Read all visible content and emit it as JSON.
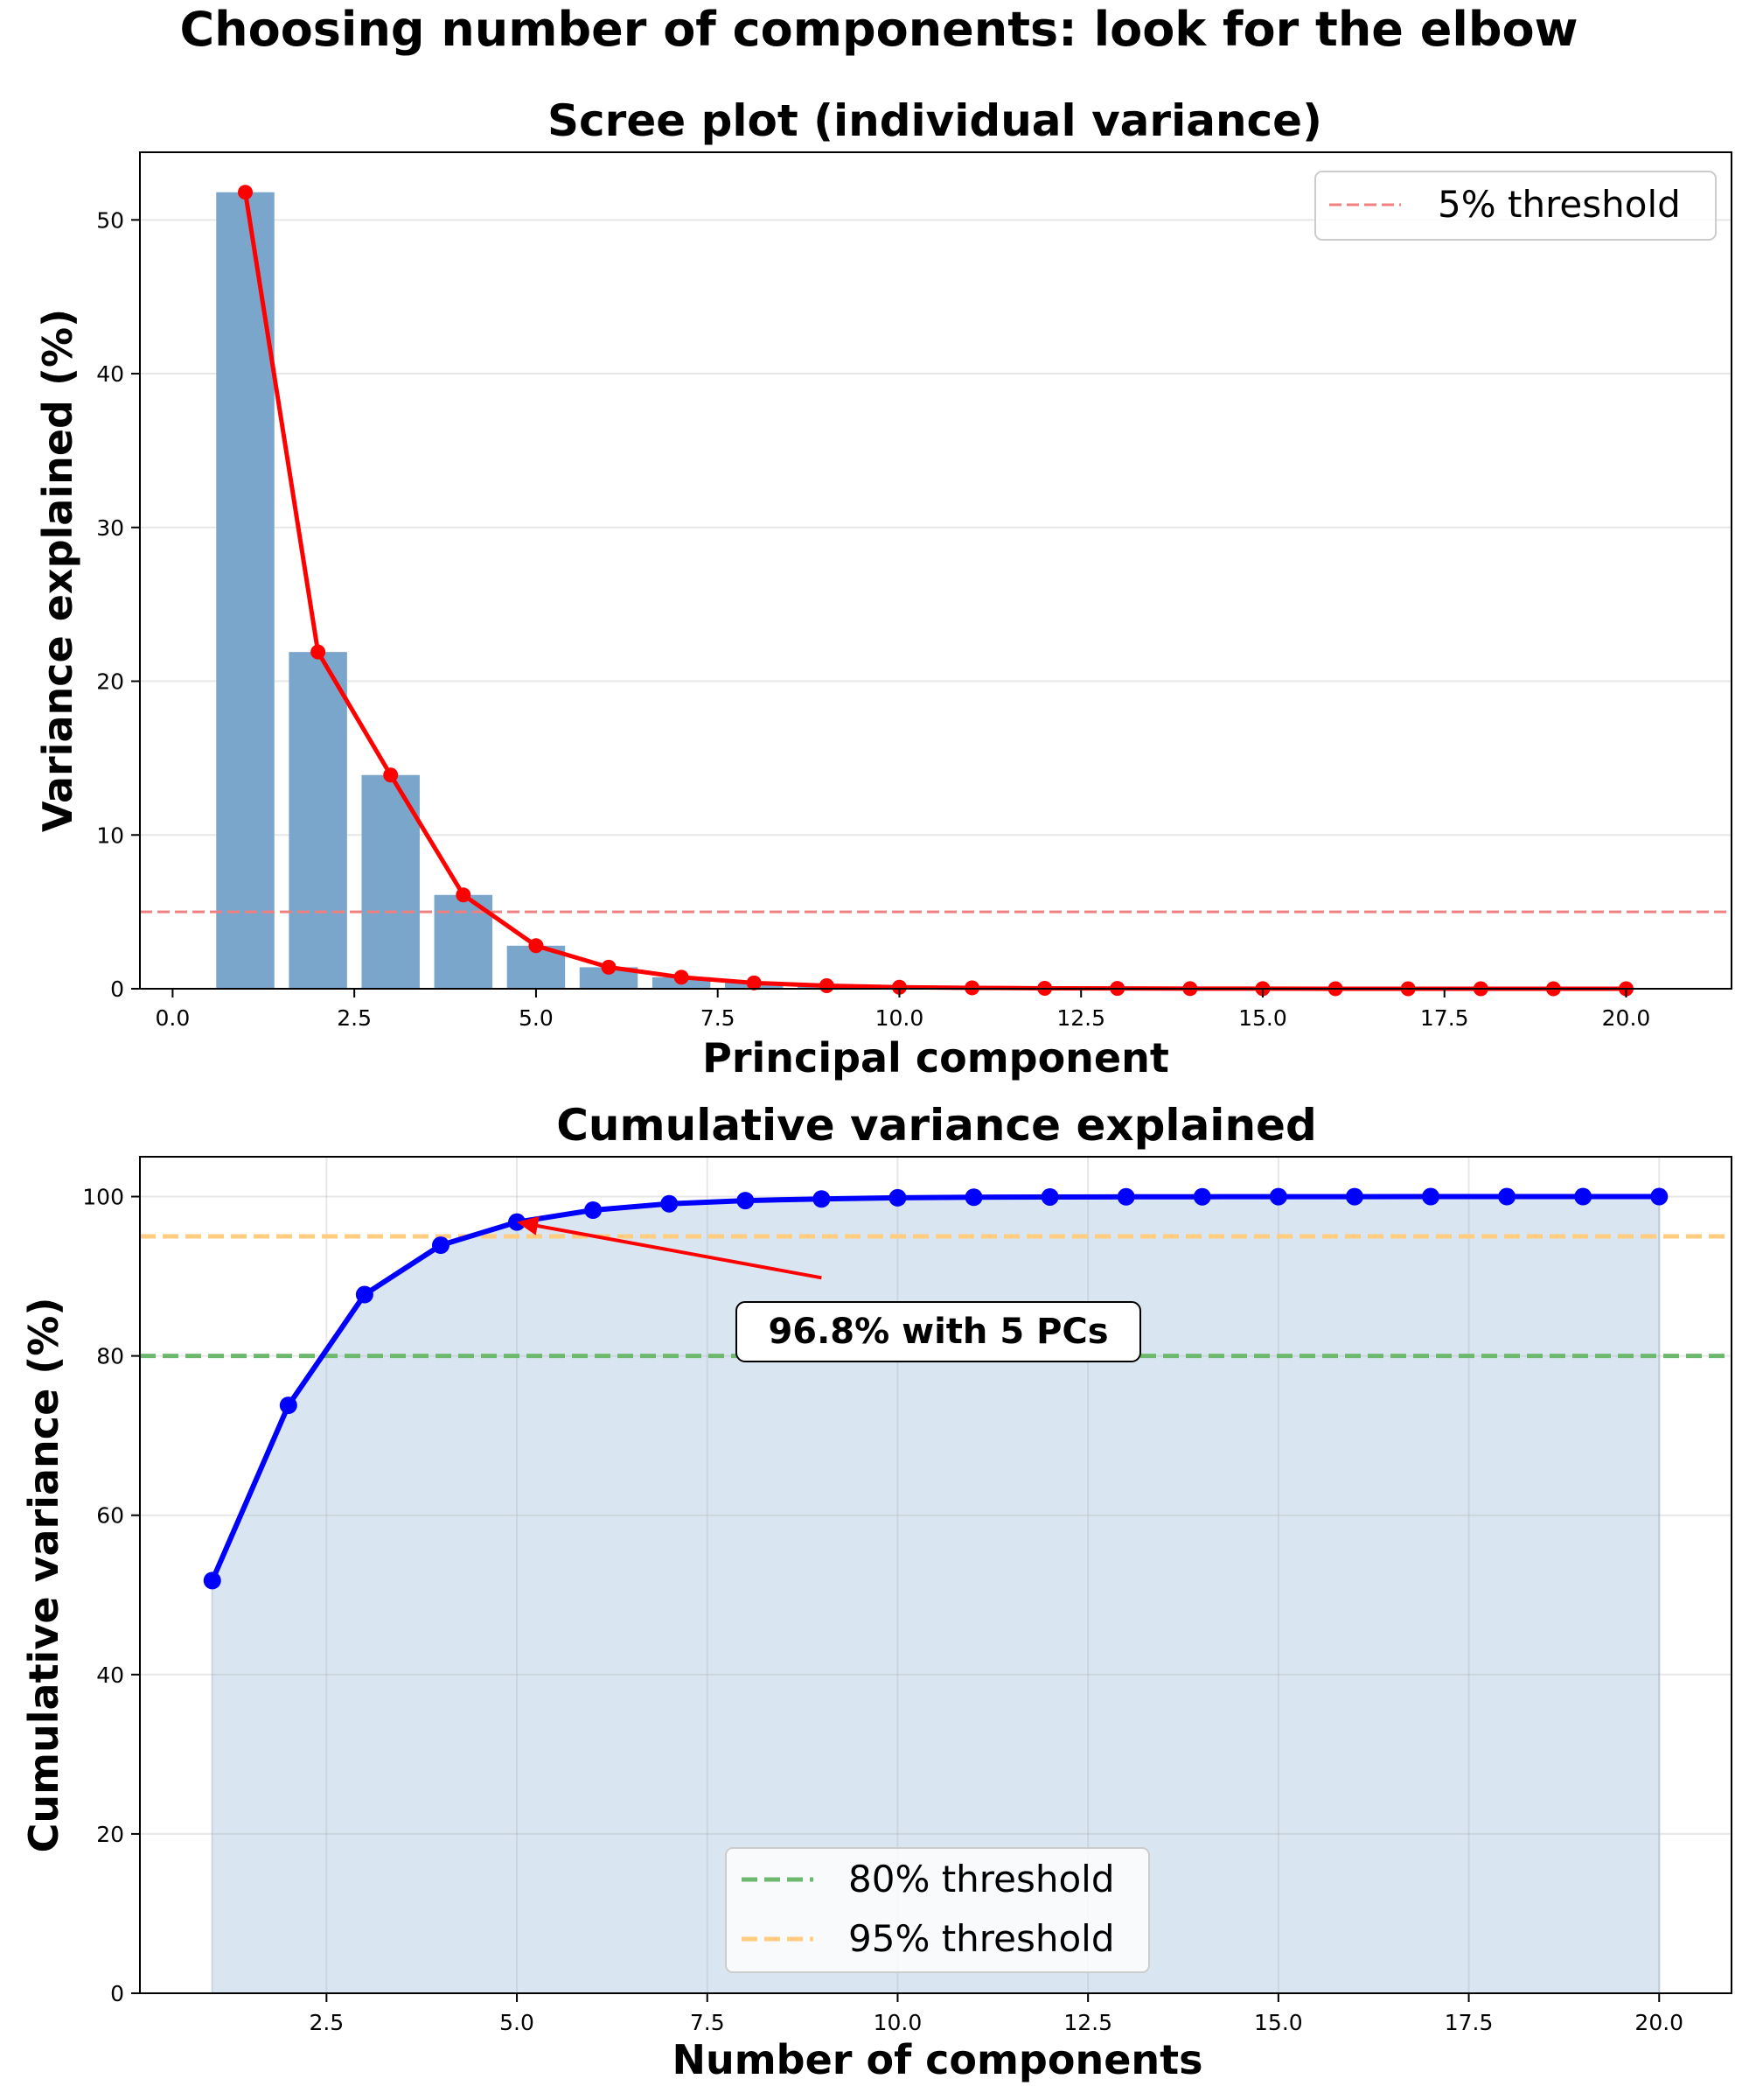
{
  "figure": {
    "title": "Choosing number of components: look for the elbow"
  },
  "colors": {
    "bar": "#7ba6cc",
    "scree_line": "#ff0000",
    "cum_line": "#0000ff",
    "cum_fill": "#d9e6f1",
    "threshold_5": "#f08080",
    "threshold_80": "#6cb86c",
    "threshold_95": "#ffcc80"
  },
  "chart_data": [
    {
      "type": "bar",
      "title": "Scree plot (individual variance)",
      "xlabel": "Principal component",
      "ylabel": "Variance explained (%)",
      "xlim": [
        -0.45,
        21.45
      ],
      "ylim": [
        0,
        54.4
      ],
      "xticks": [
        0.0,
        2.5,
        5.0,
        7.5,
        10.0,
        12.5,
        15.0,
        17.5,
        20.0
      ],
      "xtick_labels": [
        "0.0",
        "2.5",
        "5.0",
        "7.5",
        "10.0",
        "12.5",
        "15.0",
        "17.5",
        "20.0"
      ],
      "yticks": [
        0,
        10,
        20,
        30,
        40,
        50
      ],
      "ytick_labels": [
        "0",
        "10",
        "20",
        "30",
        "40",
        "50"
      ],
      "grid": "y",
      "x": [
        1,
        2,
        3,
        4,
        5,
        6,
        7,
        8,
        9,
        10,
        11,
        12,
        13,
        14,
        15,
        16,
        17,
        18,
        19,
        20
      ],
      "values": [
        51.8,
        21.9,
        13.9,
        6.1,
        2.8,
        1.4,
        0.75,
        0.38,
        0.2,
        0.1,
        0.06,
        0.03,
        0.02,
        0.01,
        0.005,
        0.003,
        0.002,
        0.001,
        0.001,
        0.0
      ],
      "overlay_line": "line with markers over bars",
      "threshold": {
        "y": 5,
        "label": "5% threshold",
        "style": "dashed"
      },
      "legend": {
        "placement": "top-right",
        "entries": [
          "5% threshold"
        ]
      }
    },
    {
      "type": "line",
      "title": "Cumulative variance explained",
      "xlabel": "Number of components",
      "ylabel": "Cumulative variance (%)",
      "xlim": [
        0.05,
        20.95
      ],
      "ylim": [
        0,
        105
      ],
      "xticks": [
        2.5,
        5.0,
        7.5,
        10.0,
        12.5,
        15.0,
        17.5,
        20.0
      ],
      "xtick_labels": [
        "2.5",
        "5.0",
        "7.5",
        "10.0",
        "12.5",
        "15.0",
        "17.5",
        "20.0"
      ],
      "yticks": [
        0,
        20,
        40,
        60,
        80,
        100
      ],
      "ytick_labels": [
        "0",
        "20",
        "40",
        "60",
        "80",
        "100"
      ],
      "grid": "both",
      "x": [
        1,
        2,
        3,
        4,
        5,
        6,
        7,
        8,
        9,
        10,
        11,
        12,
        13,
        14,
        15,
        16,
        17,
        18,
        19,
        20
      ],
      "values": [
        51.8,
        73.8,
        87.7,
        93.9,
        96.8,
        98.3,
        99.1,
        99.5,
        99.7,
        99.85,
        99.92,
        99.95,
        99.97,
        99.98,
        99.99,
        99.99,
        100,
        100,
        100,
        100
      ],
      "fill_under": true,
      "thresholds": [
        {
          "y": 80,
          "label": "80% threshold",
          "style": "dashed"
        },
        {
          "y": 95,
          "label": "95% threshold",
          "style": "dashed"
        }
      ],
      "annotation": {
        "text": "96.8% with 5 PCs",
        "point": [
          5,
          96.8
        ],
        "text_at": [
          9,
          83
        ]
      },
      "legend": {
        "placement": "lower-center",
        "entries": [
          "80% threshold",
          "95% threshold"
        ]
      }
    }
  ]
}
